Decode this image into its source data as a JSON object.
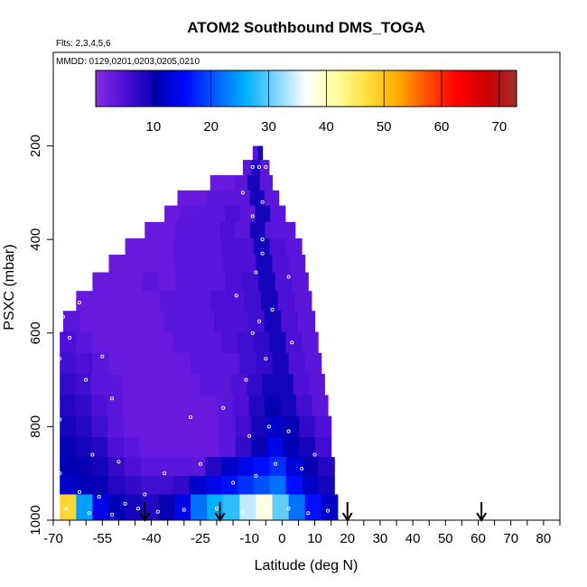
{
  "chart_data": {
    "type": "heatmap",
    "title": "ATOM2 Southbound DMS_TOGA",
    "subtitle_flights": "Flts: 2,3,4,5,6",
    "subtitle_dates": "MMDD: 0129,0201,0203,0205,0210",
    "xlabel": "Latitude (deg N)",
    "ylabel": "PSXC (mbar)",
    "xlim": [
      -70,
      85
    ],
    "ylim": [
      1000,
      0
    ],
    "x_ticks_major": [
      -70,
      -55,
      -40,
      -25,
      -10,
      0,
      10,
      20,
      30,
      40,
      50,
      60,
      70,
      80
    ],
    "x_tick_labels": [
      "-70",
      "-55",
      "-40",
      "-25",
      "-10",
      "0",
      "10",
      "20",
      "30",
      "40",
      "50",
      "60",
      "70",
      "80"
    ],
    "y_ticks": [
      200,
      400,
      600,
      800,
      1000
    ],
    "y_tick_labels": [
      "200",
      "400",
      "600",
      "800",
      "1000"
    ],
    "colorbar": {
      "range": [
        0,
        73
      ],
      "ticks": [
        10,
        20,
        30,
        40,
        50,
        60,
        70
      ],
      "tick_labels": [
        "10",
        "20",
        "30",
        "40",
        "50",
        "60",
        "70"
      ],
      "colors": [
        "#8a2be2",
        "#4b0fd8",
        "#0000b0",
        "#0008ff",
        "#0060ff",
        "#00b0ff",
        "#7fd6ff",
        "#ffffff",
        "#ffffa0",
        "#ffe040",
        "#ffb000",
        "#ff5000",
        "#ff0000",
        "#cc0000",
        "#a52a2a"
      ]
    },
    "arrows_lat": [
      -42,
      -19,
      20,
      61
    ],
    "pressure_rows": [
      {
        "p": 215,
        "lat": [
          -9,
          -6
        ],
        "v": [
          4,
          9
        ]
      },
      {
        "p": 245,
        "lat": [
          -12,
          -4
        ],
        "v": [
          4,
          8,
          4
        ]
      },
      {
        "p": 280,
        "lat": [
          -22,
          -3
        ],
        "v": [
          3,
          3,
          4,
          9,
          4
        ]
      },
      {
        "p": 310,
        "lat": [
          -32,
          -1
        ],
        "v": [
          3,
          3,
          4,
          4,
          4,
          9,
          4
        ]
      },
      {
        "p": 345,
        "lat": [
          -36,
          1
        ],
        "v": [
          3,
          4,
          4,
          4,
          5,
          4,
          9,
          4
        ]
      },
      {
        "p": 380,
        "lat": [
          -42,
          4
        ],
        "v": [
          3,
          3,
          4,
          4,
          4,
          5,
          4,
          9,
          4,
          4
        ]
      },
      {
        "p": 415,
        "lat": [
          -48,
          6
        ],
        "v": [
          3,
          3,
          3,
          4,
          4,
          4,
          5,
          5,
          9,
          5,
          4
        ]
      },
      {
        "p": 450,
        "lat": [
          -53,
          7
        ],
        "v": [
          3,
          3,
          3,
          3,
          4,
          4,
          4,
          5,
          5,
          9,
          5,
          4
        ]
      },
      {
        "p": 490,
        "lat": [
          -58,
          8
        ],
        "v": [
          3,
          3,
          3,
          4,
          3,
          4,
          4,
          4,
          5,
          6,
          9,
          5,
          4
        ]
      },
      {
        "p": 530,
        "lat": [
          -63,
          9
        ],
        "v": [
          3,
          3,
          3,
          3,
          3,
          4,
          4,
          4,
          5,
          5,
          6,
          9,
          5,
          4
        ]
      },
      {
        "p": 575,
        "lat": [
          -67,
          10
        ],
        "v": [
          4,
          3,
          3,
          3,
          3,
          3,
          4,
          4,
          4,
          5,
          5,
          6,
          9,
          5,
          4
        ]
      },
      {
        "p": 620,
        "lat": [
          -68,
          11
        ],
        "v": [
          5,
          4,
          3,
          3,
          3,
          3,
          3,
          4,
          4,
          4,
          5,
          6,
          7,
          9,
          5,
          4
        ]
      },
      {
        "p": 665,
        "lat": [
          -68,
          12
        ],
        "v": [
          6,
          5,
          4,
          3,
          3,
          3,
          3,
          3,
          4,
          4,
          4,
          6,
          7,
          9,
          5,
          4
        ]
      },
      {
        "p": 710,
        "lat": [
          -68,
          13
        ],
        "v": [
          7,
          6,
          4,
          4,
          3,
          3,
          3,
          3,
          3,
          4,
          4,
          5,
          7,
          9,
          9,
          5,
          4
        ]
      },
      {
        "p": 755,
        "lat": [
          -68,
          14
        ],
        "v": [
          8,
          7,
          5,
          4,
          3,
          3,
          3,
          3,
          3,
          3,
          4,
          5,
          8,
          10,
          9,
          6,
          4
        ]
      },
      {
        "p": 800,
        "lat": [
          -68,
          15
        ],
        "v": [
          9,
          8,
          6,
          4,
          3,
          3,
          3,
          3,
          3,
          3,
          4,
          6,
          9,
          12,
          10,
          7,
          5
        ]
      },
      {
        "p": 845,
        "lat": [
          -68,
          15
        ],
        "v": [
          10,
          9,
          8,
          5,
          4,
          3,
          3,
          3,
          3,
          3,
          4,
          7,
          10,
          14,
          11,
          9,
          6
        ]
      },
      {
        "p": 885,
        "lat": [
          -68,
          16
        ],
        "v": [
          11,
          10,
          9,
          7,
          5,
          4,
          4,
          4,
          4,
          8,
          12,
          14,
          16,
          18,
          13,
          10,
          8
        ]
      },
      {
        "p": 925,
        "lat": [
          -68,
          16
        ],
        "v": [
          12,
          11,
          10,
          8,
          7,
          6,
          6,
          7,
          12,
          14,
          16,
          18,
          20,
          22,
          16,
          12,
          9
        ]
      },
      {
        "p": 965,
        "lat": [
          -68,
          17
        ],
        "v": [
          48,
          25,
          14,
          11,
          9,
          8,
          10,
          14,
          22,
          26,
          28,
          34,
          38,
          30,
          22,
          16,
          12
        ]
      }
    ],
    "sample_points": [
      [
        -67,
        565
      ],
      [
        -62,
        535
      ],
      [
        -65,
        610
      ],
      [
        -55,
        650
      ],
      [
        -68,
        655
      ],
      [
        -60,
        700
      ],
      [
        -52,
        740
      ],
      [
        -68,
        785
      ],
      [
        -58,
        860
      ],
      [
        -50,
        875
      ],
      [
        -68,
        900
      ],
      [
        -62,
        940
      ],
      [
        -56,
        950
      ],
      [
        -48,
        965
      ],
      [
        -66,
        975
      ],
      [
        -59,
        985
      ],
      [
        -52,
        988
      ],
      [
        -44,
        975
      ],
      [
        -38,
        982
      ],
      [
        -30,
        978
      ],
      [
        -20,
        975
      ],
      [
        -12,
        982
      ],
      [
        -5,
        970
      ],
      [
        2,
        975
      ],
      [
        8,
        985
      ],
      [
        14,
        980
      ],
      [
        -15,
        920
      ],
      [
        -8,
        905
      ],
      [
        -2,
        880
      ],
      [
        6,
        890
      ],
      [
        10,
        860
      ],
      [
        -25,
        880
      ],
      [
        -36,
        900
      ],
      [
        -42,
        945
      ],
      [
        -10,
        820
      ],
      [
        -4,
        800
      ],
      [
        2,
        810
      ],
      [
        -18,
        760
      ],
      [
        -28,
        780
      ],
      [
        -11,
        700
      ],
      [
        -5,
        655
      ],
      [
        3,
        620
      ],
      [
        -9,
        600
      ],
      [
        -7,
        575
      ],
      [
        -3,
        550
      ],
      [
        -14,
        520
      ],
      [
        -8,
        470
      ],
      [
        2,
        480
      ],
      [
        -6,
        430
      ],
      [
        -6,
        400
      ],
      [
        -9,
        350
      ],
      [
        -6,
        320
      ],
      [
        -12,
        300
      ],
      [
        -9,
        245
      ],
      [
        -7,
        245
      ],
      [
        -5,
        245
      ]
    ]
  }
}
